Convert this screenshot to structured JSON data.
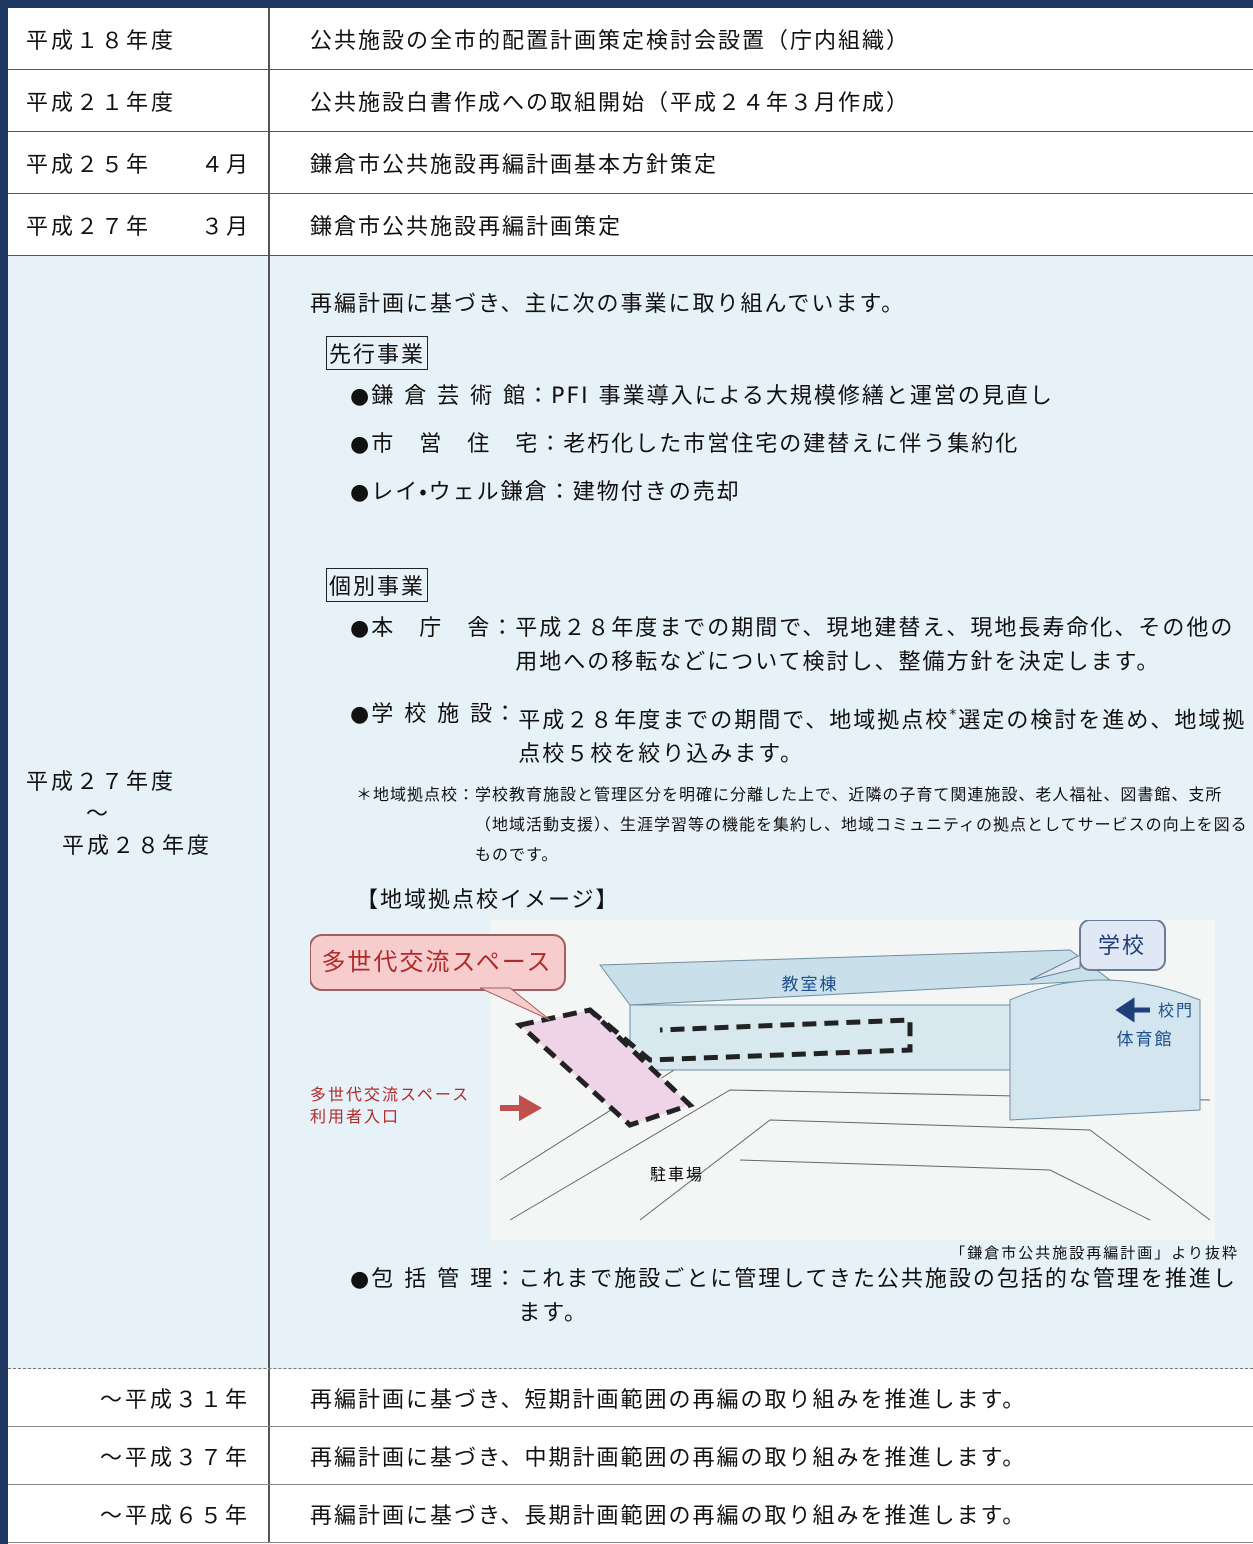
{
  "rows": [
    {
      "period": "平成１８年度",
      "content": "公共施設の全市的配置計画策定検討会設置（庁内組織）"
    },
    {
      "period": "平成２１年度",
      "content": "公共施設白書作成への取組開始（平成２４年３月作成）"
    },
    {
      "period": "平成２５年　　４月",
      "content": "鎌倉市公共施設再編計画基本方針策定"
    },
    {
      "period": "平成２７年　　３月",
      "content": "鎌倉市公共施設再編計画策定"
    }
  ],
  "main": {
    "period": [
      "平成２７年度",
      "～",
      "平成２８年度"
    ],
    "intro": "再編計画に基づき、主に次の事業に取り組んでいます。",
    "advance": {
      "heading": "先行事業",
      "items": [
        {
          "label": "●鎌 倉 芸 術 館：",
          "text": "PFI 事業導入による大規模修繕と運営の見直し"
        },
        {
          "label": "●市　営　住　宅：",
          "text": "老朽化した市営住宅の建替えに伴う集約化"
        },
        {
          "label": "●レイ・ウェル鎌倉：",
          "text": "建物付きの売却"
        }
      ]
    },
    "individual": {
      "heading": "個別事業",
      "office": {
        "label": "●本　庁　舎：",
        "text": "平成２８年度までの期間で、現地建替え、現地長寿命化、その他の用地への移転などについて検討し、整備方針を決定します。"
      },
      "school": {
        "label": "●学 校 施 設：",
        "text_before": "平成２８年度までの期間で、地域拠点校",
        "mark": "*",
        "text_after": "選定の検討を進め、地域拠点校５校を絞り込みます。"
      },
      "note": {
        "label": "＊地域拠点校：",
        "text": "学校教育施設と管理区分を明確に分離した上で、近隣の子育て関連施設、老人福祉、図書館、支所（地域活動支援）、生涯学習等の機能を集約し、地域コミュニティの拠点としてサービスの向上を図るものです。"
      },
      "image": {
        "title": "【地域拠点校イメージ】",
        "classroom": "教室棟",
        "school": "学校",
        "gate": "校門",
        "gym": "体育館",
        "space": "多世代交流スペース",
        "entrance": [
          "多世代交流スペース",
          "利用者入口"
        ],
        "parking": "駐車場",
        "caption": "「鎌倉市公共施設再編計画」より抜粋"
      },
      "comprehensive": {
        "label": "●包 括 管 理：",
        "text": "これまで施設ごとに管理してきた公共施設の包括的な管理を推進します。"
      }
    }
  },
  "later": [
    {
      "period": "～平成３１年",
      "content": "再編計画に基づき、短期計画範囲の再編の取り組みを推進します。"
    },
    {
      "period": "～平成３７年",
      "content": "再編計画に基づき、中期計画範囲の再編の取り組みを推進します。"
    },
    {
      "period": "～平成６５年",
      "content": "再編計画に基づき、長期計画範囲の再編の取り組みを推進します。"
    }
  ]
}
